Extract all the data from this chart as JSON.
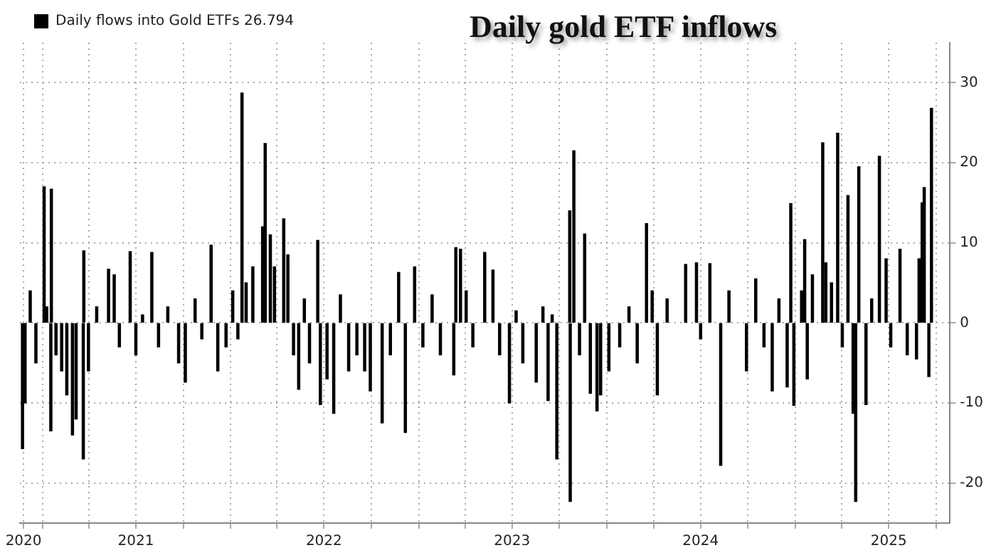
{
  "chart_data": {
    "type": "bar",
    "title": "Daily gold ETF inflows",
    "legend": "top left",
    "grid": true,
    "x": [
      "2020-11-23",
      "2020-11-28",
      "2020-12-08",
      "2020-12-19",
      "2021-01-04",
      "2021-01-09",
      "2021-01-17",
      "2021-01-18",
      "2021-01-27",
      "2021-02-07",
      "2021-02-17",
      "2021-02-28",
      "2021-03-07",
      "2021-03-21",
      "2021-03-22",
      "2021-03-31",
      "2021-04-16",
      "2021-05-09",
      "2021-05-20",
      "2021-05-30",
      "2021-06-20",
      "2021-07-01",
      "2021-07-14",
      "2021-08-01",
      "2021-08-14",
      "2021-09-01",
      "2021-09-22",
      "2021-10-05",
      "2021-10-24",
      "2021-11-06",
      "2021-11-24",
      "2021-12-07",
      "2021-12-23",
      "2022-01-05",
      "2022-01-15",
      "2022-01-23",
      "2022-01-31",
      "2022-02-13",
      "2022-03-04",
      "2022-03-09",
      "2022-03-19",
      "2022-03-27",
      "2022-04-14",
      "2022-04-22",
      "2022-05-03",
      "2022-05-13",
      "2022-05-24",
      "2022-06-03",
      "2022-06-19",
      "2022-06-24",
      "2022-07-07",
      "2022-07-20",
      "2022-08-02",
      "2022-08-18",
      "2022-09-03",
      "2022-09-18",
      "2022-09-29",
      "2022-10-22",
      "2022-11-07",
      "2022-11-23",
      "2022-12-06",
      "2022-12-24",
      "2023-01-09",
      "2023-01-27",
      "2023-02-12",
      "2023-03-10",
      "2023-03-14",
      "2023-03-23",
      "2023-04-03",
      "2023-04-16",
      "2023-05-09",
      "2023-05-25",
      "2023-06-07",
      "2023-06-26",
      "2023-07-09",
      "2023-07-22",
      "2023-08-17",
      "2023-08-30",
      "2023-09-09",
      "2023-09-17",
      "2023-09-26",
      "2023-10-21",
      "2023-10-22",
      "2023-10-29",
      "2023-11-09",
      "2023-11-19",
      "2023-11-30",
      "2023-12-13",
      "2023-12-20",
      "2024-01-05",
      "2024-01-26",
      "2024-02-13",
      "2024-02-29",
      "2024-03-18",
      "2024-03-29",
      "2024-04-08",
      "2024-04-27",
      "2024-06-02",
      "2024-06-23",
      "2024-07-01",
      "2024-07-19",
      "2024-08-09",
      "2024-08-25",
      "2024-09-28",
      "2024-10-16",
      "2024-11-01",
      "2024-11-17",
      "2024-11-30",
      "2024-12-16",
      "2024-12-23",
      "2024-12-29",
      "2025-01-13",
      "2025-01-19",
      "2025-01-24",
      "2025-02-03",
      "2025-02-23",
      "2025-03-01",
      "2025-03-12",
      "2025-03-24",
      "2025-04-02",
      "2025-04-13",
      "2025-04-23",
      "2025-04-28",
      "2025-05-04",
      "2025-05-18",
      "2025-05-29",
      "2025-06-13",
      "2025-06-26",
      "2025-07-05",
      "2025-07-23",
      "2025-08-06",
      "2025-08-24",
      "2025-08-29",
      "2025-09-04",
      "2025-09-08",
      "2025-09-17",
      "2025-09-22"
    ],
    "series": [
      {
        "name": "Daily flows into Gold ETFs 26.794",
        "color": "#000000",
        "values": [
          -15.7,
          -10,
          4,
          -5,
          17,
          2,
          -13.5,
          16.7,
          -4,
          -6,
          -9,
          -14,
          -12,
          -17,
          9,
          -6,
          2,
          6.7,
          6,
          -3,
          8.9,
          -4,
          1,
          8.8,
          -3,
          2,
          -5,
          -7.4,
          3,
          -2,
          9.7,
          -6,
          -3,
          4,
          -2,
          28.7,
          5,
          7,
          12,
          22.4,
          11,
          7,
          13,
          8.5,
          -4,
          -8.3,
          3,
          -5,
          10.3,
          -10.2,
          -7,
          -11.3,
          3.5,
          -6,
          -4,
          -6,
          -8.5,
          -12.5,
          -4,
          6.3,
          -13.7,
          7,
          -3,
          3.5,
          -4,
          -6.5,
          9.4,
          9.2,
          4,
          -3,
          8.8,
          6.6,
          -4,
          -10,
          1.5,
          -5,
          -7.4,
          2,
          -9.7,
          1,
          -17,
          14,
          -22.3,
          21.5,
          -4,
          11.1,
          -8.8,
          -11,
          -9,
          -6,
          -3,
          2,
          -5,
          12.4,
          4,
          -9,
          3,
          7.3,
          7.5,
          -2,
          7.4,
          -17.8,
          4,
          -6,
          5.5,
          -3,
          -8.5,
          3,
          -8,
          14.9,
          -10.3,
          4,
          10.4,
          -7,
          6,
          22.5,
          7.5,
          5,
          23.7,
          -3,
          15.9,
          -11.3,
          -22.3,
          19.5,
          -10.2,
          3,
          20.8,
          8,
          -3,
          9.2,
          -4,
          -4.5,
          8,
          15,
          16.9,
          -6.7,
          26.794
        ]
      }
    ],
    "xlim": [
      "2020-11-18",
      "2025-10-28"
    ],
    "xticks": [
      {
        "value": "2020-11-25",
        "label": "2020"
      },
      {
        "value": "2021-01-01",
        "label": null
      },
      {
        "value": "2021-04-01",
        "label": null
      },
      {
        "value": "2021-07-01",
        "label": "2021"
      },
      {
        "value": "2021-10-01",
        "label": null
      },
      {
        "value": "2022-01-01",
        "label": null
      },
      {
        "value": "2022-04-01",
        "label": null
      },
      {
        "value": "2022-07-01",
        "label": "2022"
      },
      {
        "value": "2022-10-01",
        "label": null
      },
      {
        "value": "2023-01-01",
        "label": null
      },
      {
        "value": "2023-04-01",
        "label": null
      },
      {
        "value": "2023-07-01",
        "label": "2023"
      },
      {
        "value": "2023-10-01",
        "label": null
      },
      {
        "value": "2024-01-01",
        "label": null
      },
      {
        "value": "2024-04-01",
        "label": null
      },
      {
        "value": "2024-07-01",
        "label": "2024"
      },
      {
        "value": "2024-10-01",
        "label": null
      },
      {
        "value": "2025-01-01",
        "label": null
      },
      {
        "value": "2025-04-01",
        "label": null
      },
      {
        "value": "2025-07-01",
        "label": "2025"
      },
      {
        "value": "2025-10-01",
        "label": null
      }
    ],
    "ylim": [
      -25,
      35
    ],
    "yticks": [
      -20,
      -10,
      0,
      10,
      20,
      30
    ]
  }
}
